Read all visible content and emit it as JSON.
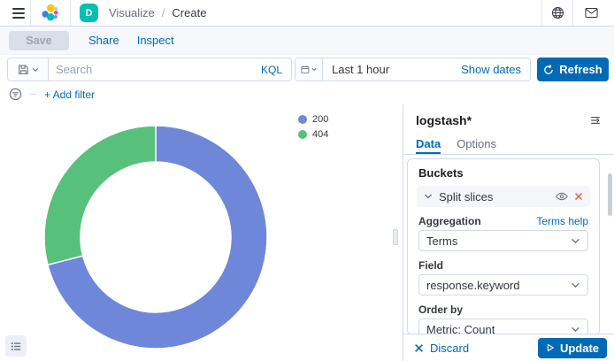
{
  "colors": {
    "accent_blue": "#006BB4",
    "border": "#D3DAE6",
    "danger": "#E0604F",
    "space_avatar": "#00BFB3"
  },
  "header": {
    "breadcrumbs": {
      "first": "Visualize",
      "separator": "/",
      "last": "Create"
    },
    "space_initial": "D"
  },
  "toolbar": {
    "save_label": "Save",
    "share_label": "Share",
    "inspect_label": "Inspect"
  },
  "query_bar": {
    "search_placeholder": "Search",
    "language_label": "KQL",
    "time_value": "Last 1 hour",
    "show_dates_label": "Show dates",
    "refresh_label": "Refresh"
  },
  "filter_bar": {
    "add_filter_label": "+ Add filter"
  },
  "chart_data": {
    "type": "pie",
    "donut": true,
    "categories": [
      "200",
      "404"
    ],
    "values": [
      71,
      29
    ],
    "unit": "percent (estimated from arc angles)",
    "colors": [
      "#6F87D8",
      "#57C17B"
    ],
    "legend_position": "right-top",
    "start_angle_deg": 0,
    "direction": "clockwise"
  },
  "legend": {
    "items": [
      {
        "label": "200",
        "color": "#6F87D8"
      },
      {
        "label": "404",
        "color": "#57C17B"
      }
    ]
  },
  "panel": {
    "title": "logstash*",
    "tabs": {
      "data": "Data",
      "options": "Options"
    },
    "buckets": {
      "heading": "Buckets",
      "group_label": "Split slices",
      "aggregation_label": "Aggregation",
      "aggregation_help": "Terms help",
      "aggregation_value": "Terms",
      "field_label": "Field",
      "field_value": "response.keyword",
      "order_by_label": "Order by",
      "order_by_value": "Metric: Count"
    },
    "footer": {
      "discard_label": "Discard",
      "update_label": "Update"
    }
  }
}
